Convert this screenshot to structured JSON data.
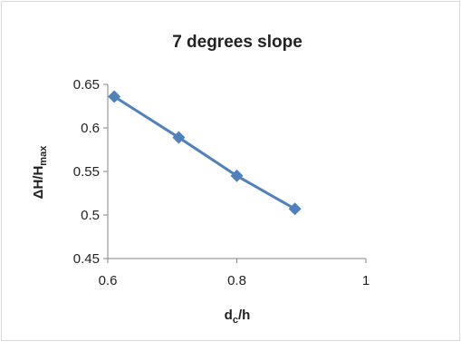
{
  "chart_data": {
    "type": "scatter",
    "title": "7 degrees slope",
    "xlabel": {
      "main": "d",
      "sub": "c",
      "tail": "/h"
    },
    "ylabel": {
      "main": "ΔH/H",
      "sub": "max"
    },
    "xlim": [
      0.6,
      1.0
    ],
    "ylim": [
      0.45,
      0.65
    ],
    "xticks": [
      {
        "value": 0.6,
        "label": "0.6"
      },
      {
        "value": 0.8,
        "label": "0.8"
      },
      {
        "value": 1.0,
        "label": "1"
      }
    ],
    "yticks": [
      {
        "value": 0.45,
        "label": "0.45"
      },
      {
        "value": 0.5,
        "label": "0.5"
      },
      {
        "value": 0.55,
        "label": "0.55"
      },
      {
        "value": 0.6,
        "label": "0.6"
      },
      {
        "value": 0.65,
        "label": "0.65"
      }
    ],
    "grid": false,
    "series": [
      {
        "x": [
          0.61,
          0.71,
          0.8,
          0.89
        ],
        "y": [
          0.636,
          0.589,
          0.545,
          0.507
        ],
        "marker": "diamond",
        "line": true,
        "color": "#4F81BD"
      }
    ]
  }
}
